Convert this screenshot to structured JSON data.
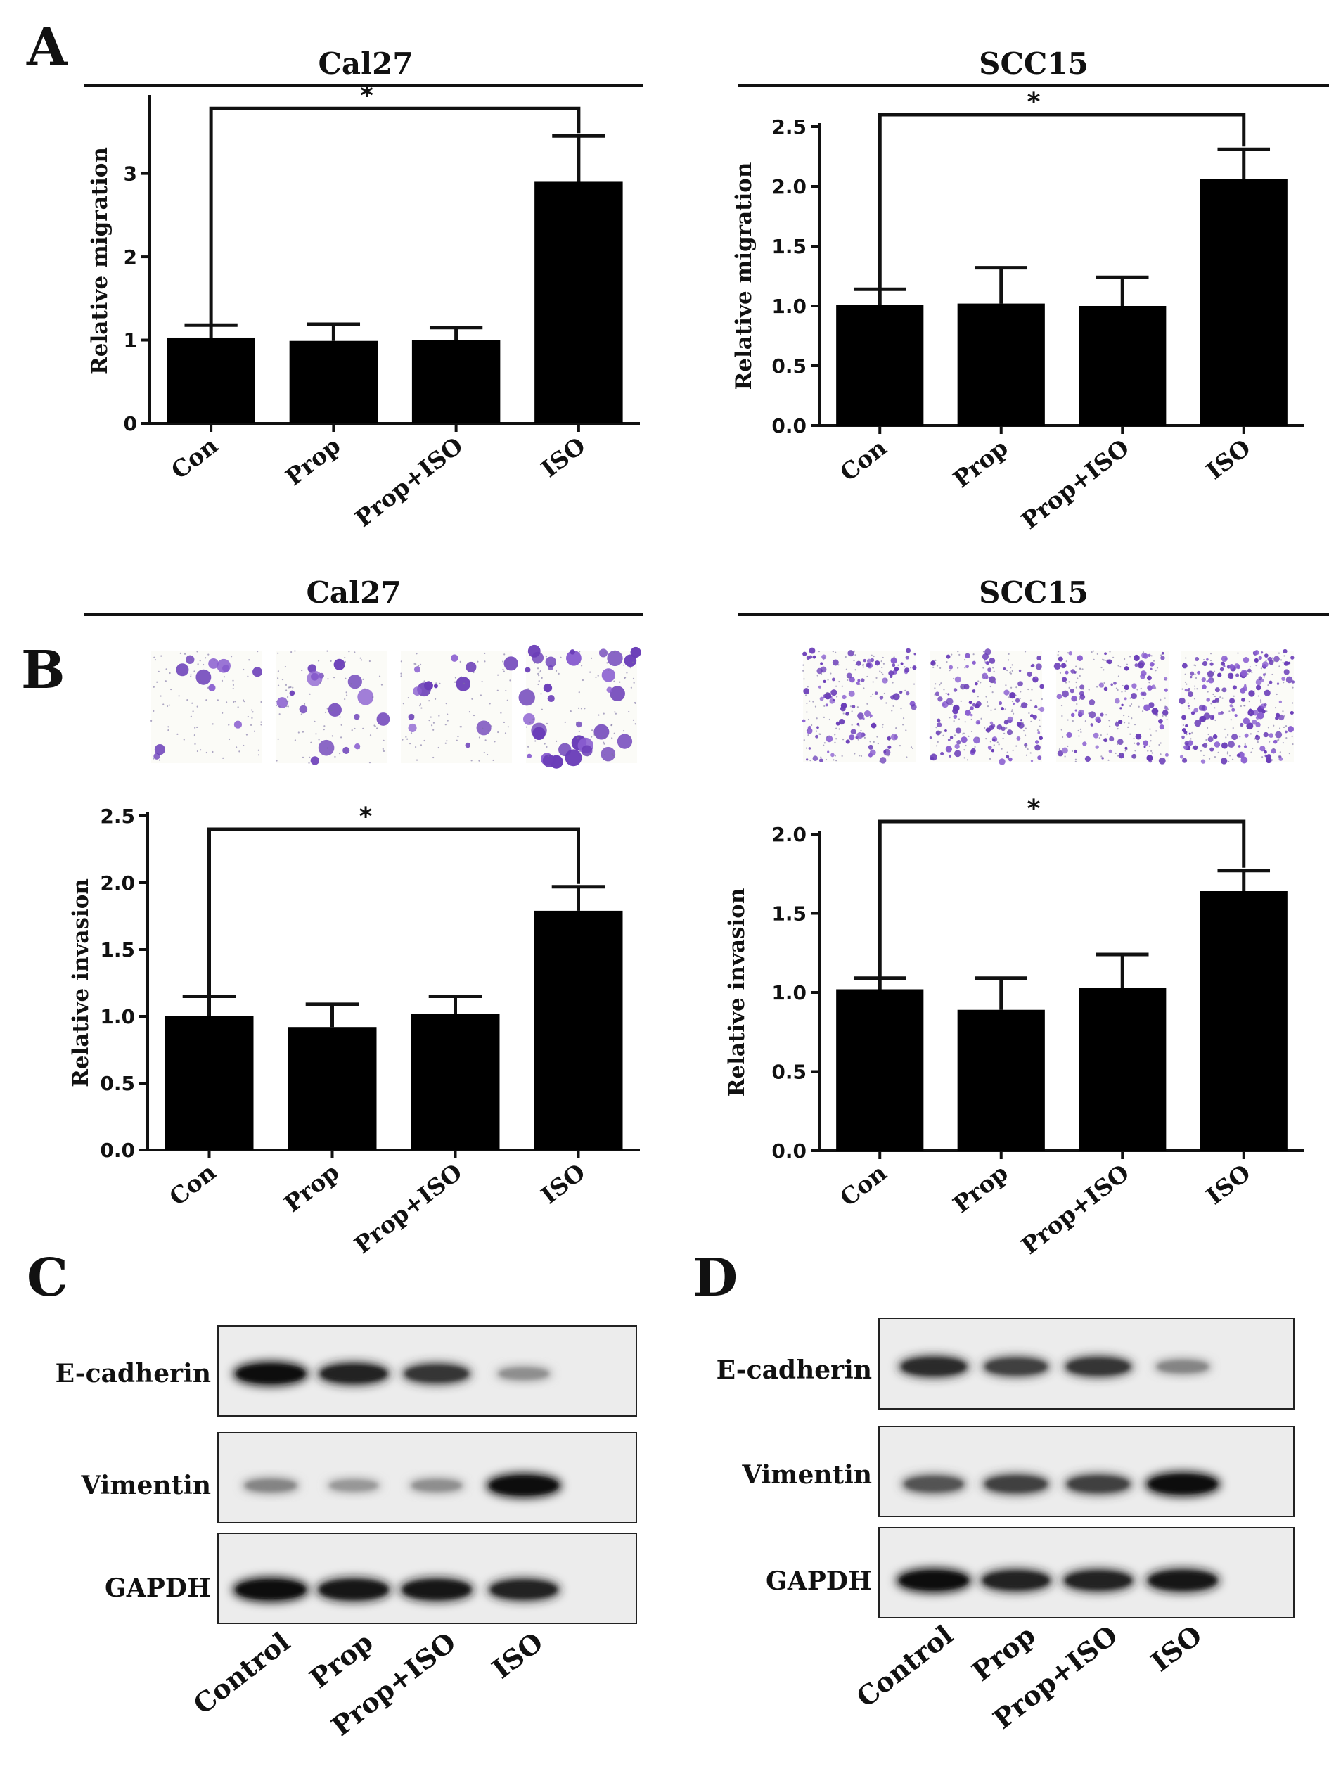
{
  "panels": {
    "A": "A",
    "B": "B",
    "C": "C",
    "D": "D"
  },
  "chart_data": [
    {
      "id": "a-cal27",
      "panel": "A",
      "type": "bar",
      "title": "Cal27",
      "ylabel": "Relative migration",
      "categories": [
        "Con",
        "Prop",
        "Prop+ISO",
        "ISO"
      ],
      "values": [
        1.03,
        0.99,
        1.0,
        2.9
      ],
      "errors": [
        0.15,
        0.2,
        0.15,
        0.55
      ],
      "ylim": [
        0,
        3.9
      ],
      "yticks": [
        0,
        1,
        2,
        3
      ],
      "tick_labels": [
        "0",
        "1",
        "2",
        "3"
      ],
      "significance": {
        "from": "Con",
        "to": "ISO",
        "label": "*",
        "at": 3.78
      }
    },
    {
      "id": "a-scc15",
      "panel": "A",
      "type": "bar",
      "title": "SCC15",
      "ylabel": "Relative migration",
      "categories": [
        "Con",
        "Prop",
        "Prop+ISO",
        "ISO"
      ],
      "values": [
        1.01,
        1.02,
        1.0,
        2.06
      ],
      "errors": [
        0.13,
        0.3,
        0.24,
        0.25
      ],
      "ylim": [
        0,
        2.5
      ],
      "yticks": [
        0,
        0.5,
        1.0,
        1.5,
        2.0,
        2.5
      ],
      "tick_labels": [
        "0.0",
        "0.5",
        "1.0",
        "1.5",
        "2.0",
        "2.5"
      ],
      "significance": {
        "from": "Con",
        "to": "ISO",
        "label": "*",
        "at": 2.6
      }
    },
    {
      "id": "b-cal27",
      "panel": "B",
      "type": "bar",
      "title": "Cal27",
      "ylabel": "Relative invasion",
      "categories": [
        "Con",
        "Prop",
        "Prop+ISO",
        "ISO"
      ],
      "values": [
        1.0,
        0.92,
        1.02,
        1.79
      ],
      "errors": [
        0.15,
        0.17,
        0.13,
        0.18
      ],
      "ylim": [
        0,
        2.5
      ],
      "yticks": [
        0,
        0.5,
        1.0,
        1.5,
        2.0,
        2.5
      ],
      "tick_labels": [
        "0.0",
        "0.5",
        "1.0",
        "1.5",
        "2.0",
        "2.5"
      ],
      "significance": {
        "from": "Con",
        "to": "ISO",
        "label": "*",
        "at": 2.4
      }
    },
    {
      "id": "b-scc15",
      "panel": "B",
      "type": "bar",
      "title": "SCC15",
      "ylabel": "Relative invasion",
      "categories": [
        "Con",
        "Prop",
        "Prop+ISO",
        "ISO"
      ],
      "values": [
        1.02,
        0.89,
        1.03,
        1.64
      ],
      "errors": [
        0.07,
        0.2,
        0.21,
        0.13
      ],
      "ylim": [
        0,
        2.0
      ],
      "yticks": [
        0,
        0.5,
        1.0,
        1.5,
        2.0
      ],
      "tick_labels": [
        "0.0",
        "0.5",
        "1.0",
        "1.5",
        "2.0"
      ],
      "significance": {
        "from": "Con",
        "to": "ISO",
        "label": "*",
        "at": 2.08
      }
    }
  ],
  "invasion_images": {
    "cal27": {
      "title": "Cal27",
      "densities": [
        0.18,
        0.28,
        0.22,
        0.55
      ]
    },
    "scc15": {
      "title": "SCC15",
      "densities": [
        0.45,
        0.5,
        0.45,
        0.75
      ]
    }
  },
  "blots": {
    "C": {
      "proteins": [
        "E-cadherin",
        "Vimentin",
        "GAPDH"
      ],
      "lanes": [
        "Control",
        "Prop",
        "Prop+ISO",
        "ISO"
      ],
      "intensities": [
        [
          0.95,
          0.85,
          0.75,
          0.3
        ],
        [
          0.35,
          0.25,
          0.3,
          0.95
        ],
        [
          0.98,
          0.92,
          0.9,
          0.85
        ]
      ]
    },
    "D": {
      "proteins": [
        "E-cadherin",
        "Vimentin",
        "GAPDH"
      ],
      "lanes": [
        "Control",
        "Prop",
        "Prop+ISO",
        "ISO"
      ],
      "intensities": [
        [
          0.8,
          0.7,
          0.75,
          0.35
        ],
        [
          0.6,
          0.7,
          0.7,
          0.95
        ],
        [
          0.95,
          0.85,
          0.85,
          0.9
        ]
      ]
    }
  }
}
